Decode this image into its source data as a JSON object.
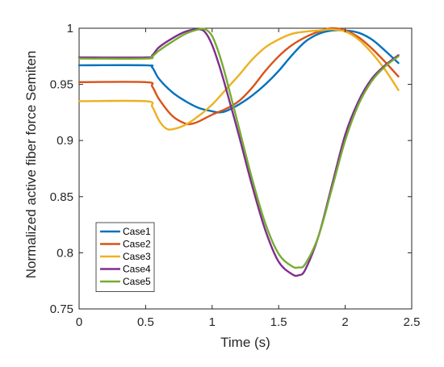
{
  "chart_data": {
    "type": "line",
    "title": "",
    "xlabel": "Time (s)",
    "ylabel": "Normalized active fiber force  Semiten",
    "xlim": [
      0,
      2.5
    ],
    "ylim": [
      0.75,
      1
    ],
    "xticks": [
      "0",
      "0.5",
      "1",
      "1.5",
      "2",
      "2.5"
    ],
    "yticks": [
      "0.75",
      "0.8",
      "0.85",
      "0.9",
      "0.95",
      "1"
    ],
    "grid": false,
    "legend_position": "bottom-left",
    "series": [
      {
        "name": "Case1",
        "color": "#0072BD",
        "x": [
          0,
          0.5,
          0.55,
          0.6,
          0.7,
          0.8,
          0.9,
          1.0,
          1.05,
          1.1,
          1.2,
          1.3,
          1.4,
          1.5,
          1.6,
          1.7,
          1.8,
          1.9,
          2.0,
          2.1,
          2.2,
          2.3,
          2.4
        ],
        "y": [
          0.967,
          0.967,
          0.965,
          0.955,
          0.943,
          0.935,
          0.929,
          0.926,
          0.925,
          0.926,
          0.932,
          0.94,
          0.95,
          0.962,
          0.976,
          0.988,
          0.995,
          0.998,
          0.998,
          0.996,
          0.99,
          0.98,
          0.969
        ]
      },
      {
        "name": "Case2",
        "color": "#D95319",
        "x": [
          0,
          0.5,
          0.55,
          0.6,
          0.7,
          0.8,
          0.85,
          0.9,
          1.0,
          1.1,
          1.2,
          1.3,
          1.4,
          1.5,
          1.6,
          1.7,
          1.8,
          1.9,
          2.0,
          2.1,
          2.2,
          2.3,
          2.4
        ],
        "y": [
          0.952,
          0.952,
          0.948,
          0.937,
          0.922,
          0.915,
          0.915,
          0.917,
          0.923,
          0.928,
          0.935,
          0.947,
          0.962,
          0.975,
          0.985,
          0.992,
          0.997,
          1.0,
          0.998,
          0.992,
          0.982,
          0.97,
          0.957
        ]
      },
      {
        "name": "Case3",
        "color": "#EDB120",
        "x": [
          0,
          0.5,
          0.55,
          0.6,
          0.65,
          0.7,
          0.8,
          0.9,
          1.0,
          1.1,
          1.2,
          1.3,
          1.4,
          1.5,
          1.6,
          1.7,
          1.8,
          1.9,
          2.0,
          2.1,
          2.2,
          2.3,
          2.4
        ],
        "y": [
          0.935,
          0.935,
          0.93,
          0.918,
          0.911,
          0.91,
          0.914,
          0.922,
          0.932,
          0.945,
          0.958,
          0.972,
          0.983,
          0.99,
          0.995,
          0.997,
          0.998,
          0.999,
          0.997,
          0.99,
          0.978,
          0.963,
          0.945
        ]
      },
      {
        "name": "Case4",
        "color": "#7E2F8E",
        "x": [
          0,
          0.5,
          0.55,
          0.6,
          0.7,
          0.8,
          0.9,
          0.95,
          1.0,
          1.05,
          1.1,
          1.2,
          1.3,
          1.4,
          1.5,
          1.6,
          1.65,
          1.7,
          1.8,
          1.9,
          2.0,
          2.1,
          2.2,
          2.3,
          2.4
        ],
        "y": [
          0.974,
          0.974,
          0.976,
          0.983,
          0.991,
          0.997,
          0.999,
          0.996,
          0.985,
          0.968,
          0.948,
          0.905,
          0.86,
          0.82,
          0.792,
          0.781,
          0.78,
          0.785,
          0.815,
          0.86,
          0.905,
          0.935,
          0.955,
          0.967,
          0.976
        ]
      },
      {
        "name": "Case5",
        "color": "#77AC30",
        "x": [
          0,
          0.5,
          0.55,
          0.6,
          0.7,
          0.8,
          0.9,
          0.95,
          1.0,
          1.05,
          1.1,
          1.2,
          1.3,
          1.4,
          1.5,
          1.6,
          1.65,
          1.7,
          1.8,
          1.9,
          2.0,
          2.1,
          2.2,
          2.3,
          2.4
        ],
        "y": [
          0.973,
          0.973,
          0.975,
          0.98,
          0.988,
          0.995,
          0.999,
          0.999,
          0.993,
          0.978,
          0.958,
          0.912,
          0.866,
          0.826,
          0.799,
          0.788,
          0.787,
          0.79,
          0.815,
          0.857,
          0.9,
          0.932,
          0.953,
          0.966,
          0.975
        ]
      }
    ]
  }
}
